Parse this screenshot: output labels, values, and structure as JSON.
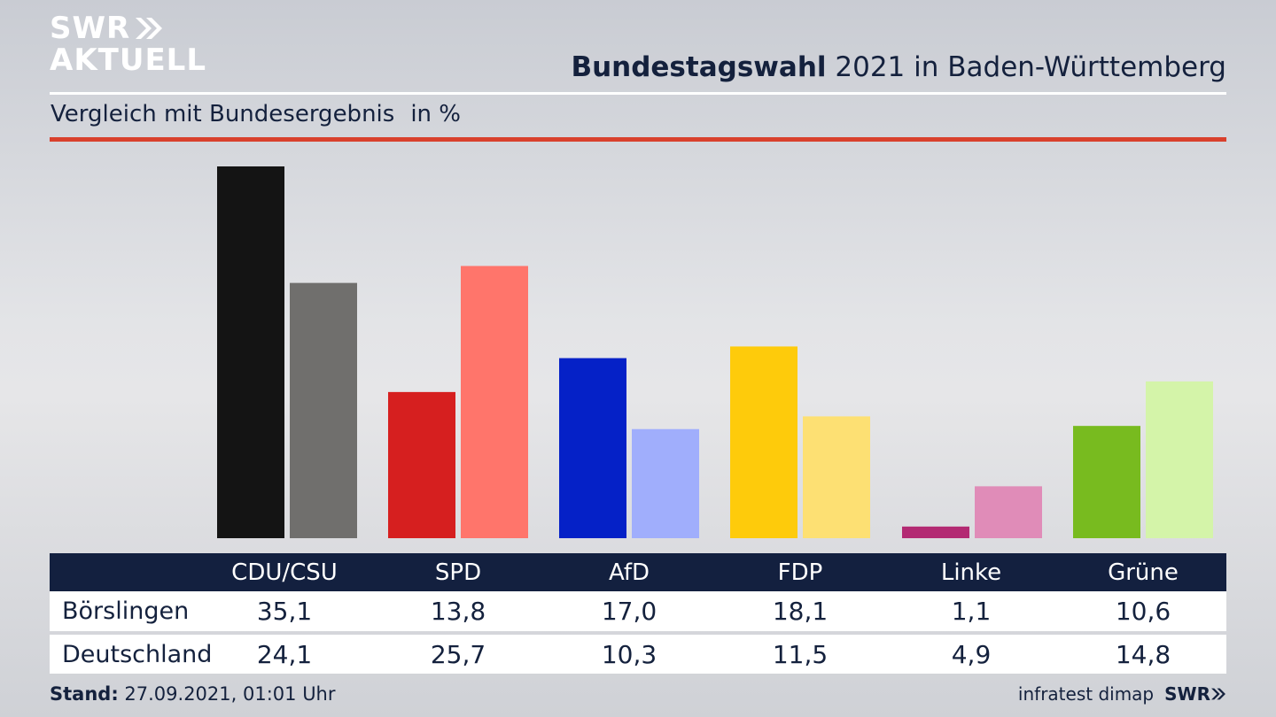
{
  "header": {
    "logo_line1": "SWR",
    "logo_line2": "AKTUELL",
    "title_bold": "Bundestagswahl",
    "title_rest": "2021 in Baden-Württemberg",
    "subtitle": "Vergleich mit Bundesergebnis",
    "unit": "in %"
  },
  "chart_data": {
    "type": "bar",
    "categories": [
      "CDU/CSU",
      "SPD",
      "AfD",
      "FDP",
      "Linke",
      "Grüne"
    ],
    "series": [
      {
        "name": "Börslingen",
        "values": [
          35.1,
          13.8,
          17.0,
          18.1,
          1.1,
          10.6
        ],
        "colors": [
          "#141414",
          "#d61f1f",
          "#0521c7",
          "#fecb0b",
          "#b32a73",
          "#78bb1f"
        ]
      },
      {
        "name": "Deutschland",
        "values": [
          24.1,
          25.7,
          10.3,
          11.5,
          4.9,
          14.8
        ],
        "colors": [
          "#706f6d",
          "#ff756b",
          "#a0aefc",
          "#fde073",
          "#e08cb8",
          "#d4f4a9"
        ]
      }
    ],
    "ylim": [
      0,
      35.1
    ]
  },
  "table": {
    "headers": [
      "CDU/CSU",
      "SPD",
      "AfD",
      "FDP",
      "Linke",
      "Grüne"
    ],
    "rows": [
      {
        "label": "Börslingen",
        "values": [
          "35,1",
          "13,8",
          "17,0",
          "18,1",
          "1,1",
          "10,6"
        ]
      },
      {
        "label": "Deutschland",
        "values": [
          "24,1",
          "25,7",
          "10,3",
          "11,5",
          "4,9",
          "14,8"
        ]
      }
    ]
  },
  "footer": {
    "stand_label": "Stand:",
    "stand_value": "27.09.2021, 01:01 Uhr",
    "source": "infratest dimap",
    "brand": "SWR"
  }
}
